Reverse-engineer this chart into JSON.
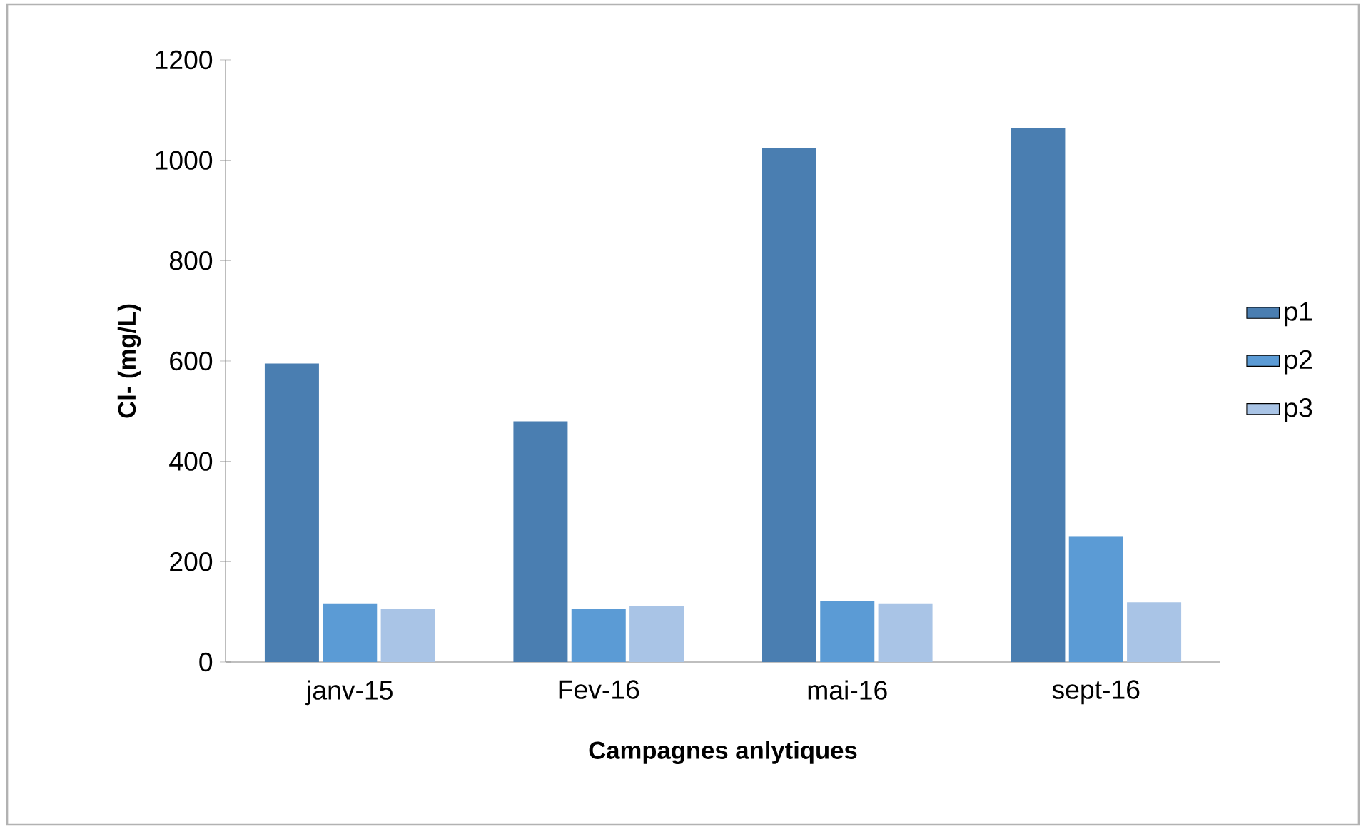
{
  "chart_data": {
    "type": "bar",
    "xlabel": "Campagnes anlytiques",
    "ylabel": "Cl- (mg/L)",
    "categories": [
      "janv-15",
      "Fev-16",
      "mai-16",
      "sept-16"
    ],
    "series": [
      {
        "name": "p1",
        "color": "#4a7eb1",
        "values": [
          595,
          480,
          1025,
          1065
        ]
      },
      {
        "name": "p2",
        "color": "#5b9bd5",
        "values": [
          117,
          105,
          122,
          250
        ]
      },
      {
        "name": "p3",
        "color": "#a9c4e6",
        "values": [
          105,
          111,
          117,
          119
        ]
      }
    ],
    "ylim": [
      0,
      1200
    ],
    "yticks": [
      0,
      200,
      400,
      600,
      800,
      1000,
      1200
    ],
    "grid": false,
    "legend": "right"
  }
}
